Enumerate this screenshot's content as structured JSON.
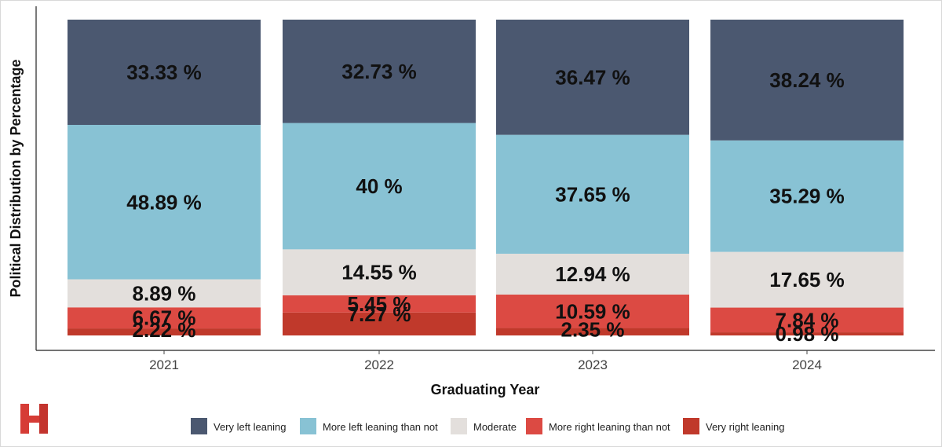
{
  "chart_data": {
    "type": "bar",
    "stacked": true,
    "title": "",
    "xlabel": "Graduating Year",
    "ylabel": "Political Distribution by Percentage",
    "ylim": [
      0,
      100
    ],
    "grid": false,
    "legend_position": "bottom",
    "categories": [
      "2021",
      "2022",
      "2023",
      "2024"
    ],
    "series": [
      {
        "name": "Very right leaning",
        "color": "#c0392b",
        "values": [
          2.22,
          7.27,
          2.35,
          0.98
        ],
        "labels": [
          "2.22 %",
          "7.27 %",
          "2.35 %",
          "0.98 %"
        ]
      },
      {
        "name": "More right leaning than not",
        "color": "#dc4a43",
        "values": [
          6.67,
          5.45,
          10.59,
          7.84
        ],
        "labels": [
          "6.67 %",
          "5.45 %",
          "10.59 %",
          "7.84 %"
        ]
      },
      {
        "name": "Moderate",
        "color": "#e3dfdc",
        "values": [
          8.89,
          14.55,
          12.94,
          17.65
        ],
        "labels": [
          "8.89 %",
          "14.55 %",
          "12.94 %",
          "17.65 %"
        ]
      },
      {
        "name": "More left leaning than not",
        "color": "#88c2d4",
        "values": [
          48.89,
          40.0,
          37.65,
          35.29
        ],
        "labels": [
          "48.89 %",
          "40 %",
          "37.65 %",
          "35.29 %"
        ]
      },
      {
        "name": "Very left leaning",
        "color": "#4b5870",
        "values": [
          33.33,
          32.73,
          36.47,
          38.24
        ],
        "labels": [
          "33.33 %",
          "32.73 %",
          "36.47 %",
          "38.24 %"
        ]
      }
    ],
    "legend_order": [
      "Very left leaning",
      "More left leaning than not",
      "Moderate",
      "More right leaning than not",
      "Very right leaning"
    ]
  },
  "logo": {
    "letter": "H",
    "color": "#d63c36"
  }
}
